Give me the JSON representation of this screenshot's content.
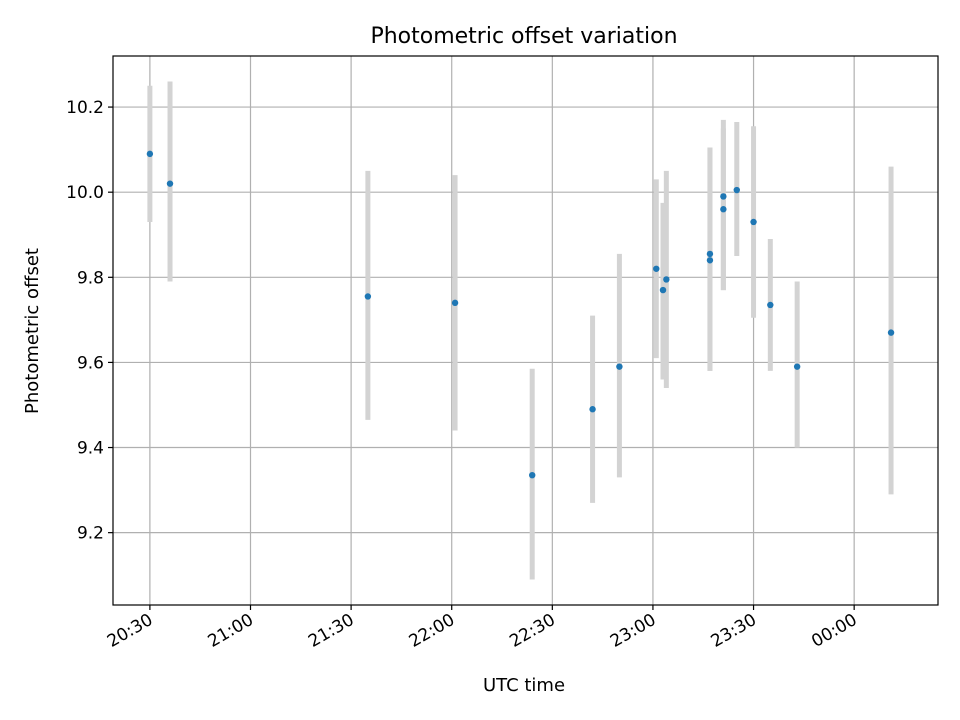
{
  "chart_data": {
    "type": "scatter",
    "title": "Photometric offset variation",
    "xlabel": "UTC time",
    "ylabel": "Photometric offset",
    "x_unit": "time (HH:MM, UTC)",
    "xlim": [
      "20:19",
      "00:25"
    ],
    "ylim": [
      9.03,
      10.32
    ],
    "x_ticks": [
      "20:30",
      "21:00",
      "21:30",
      "22:00",
      "22:30",
      "23:00",
      "23:30",
      "00:00"
    ],
    "y_ticks": [
      9.2,
      9.4,
      9.6,
      9.8,
      10.0,
      10.2
    ],
    "grid": true,
    "legend": "none",
    "point_color": "#1f77b4",
    "errorbar_color": "#d3d3d3",
    "points": [
      {
        "time": "20:30",
        "y": 10.09,
        "err_low": 9.93,
        "err_high": 10.25
      },
      {
        "time": "20:36",
        "y": 10.02,
        "err_low": 9.79,
        "err_high": 10.26
      },
      {
        "time": "21:35",
        "y": 9.755,
        "err_low": 9.465,
        "err_high": 10.05
      },
      {
        "time": "22:01",
        "y": 9.74,
        "err_low": 9.44,
        "err_high": 10.04
      },
      {
        "time": "22:24",
        "y": 9.335,
        "err_low": 9.09,
        "err_high": 9.585
      },
      {
        "time": "22:42",
        "y": 9.49,
        "err_low": 9.27,
        "err_high": 9.71
      },
      {
        "time": "22:50",
        "y": 9.59,
        "err_low": 9.33,
        "err_high": 9.855
      },
      {
        "time": "23:01",
        "y": 9.82,
        "err_low": 9.61,
        "err_high": 10.03
      },
      {
        "time": "23:03",
        "y": 9.77,
        "err_low": 9.56,
        "err_high": 9.975
      },
      {
        "time": "23:04",
        "y": 9.795,
        "err_low": 9.54,
        "err_high": 10.05
      },
      {
        "time": "23:17",
        "y": 9.855,
        "err_low": 9.58,
        "err_high": 10.105
      },
      {
        "time": "23:17",
        "y": 9.84,
        "err_low": 9.58,
        "err_high": 10.105
      },
      {
        "time": "23:21",
        "y": 9.99,
        "err_low": 9.77,
        "err_high": 10.17
      },
      {
        "time": "23:21",
        "y": 9.96,
        "err_low": 9.77,
        "err_high": 10.15
      },
      {
        "time": "23:25",
        "y": 10.005,
        "err_low": 9.85,
        "err_high": 10.165
      },
      {
        "time": "23:30",
        "y": 9.93,
        "err_low": 9.705,
        "err_high": 10.155
      },
      {
        "time": "23:35",
        "y": 9.735,
        "err_low": 9.58,
        "err_high": 9.89
      },
      {
        "time": "23:43",
        "y": 9.59,
        "err_low": 9.4,
        "err_high": 9.79
      },
      {
        "time": "00:11",
        "y": 9.67,
        "err_low": 9.29,
        "err_high": 10.06
      }
    ]
  }
}
